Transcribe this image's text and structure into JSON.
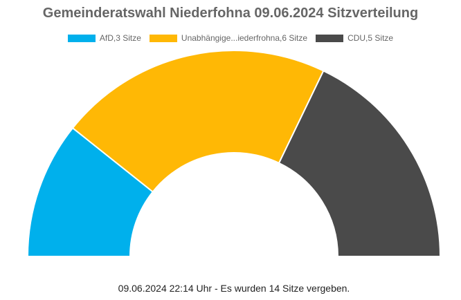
{
  "chart_data": {
    "type": "pie",
    "variant": "semicircle-donut",
    "title": "Gemeinderatswahl Niederfohna 09.06.2024 Sitzverteilung",
    "legend_position": "top",
    "series": [
      {
        "name": "AfD,3 Sitze",
        "value": 3,
        "color": "#00b0ec"
      },
      {
        "name": "Unabhängige...iederfrohna,6 Sitze",
        "value": 6,
        "color": "#ffb805"
      },
      {
        "name": "CDU,5 Sitze",
        "value": 5,
        "color": "#4a4a4a"
      }
    ],
    "footer": "09.06.2024 22:14 Uhr - Es wurden 14 Sitze vergeben."
  }
}
